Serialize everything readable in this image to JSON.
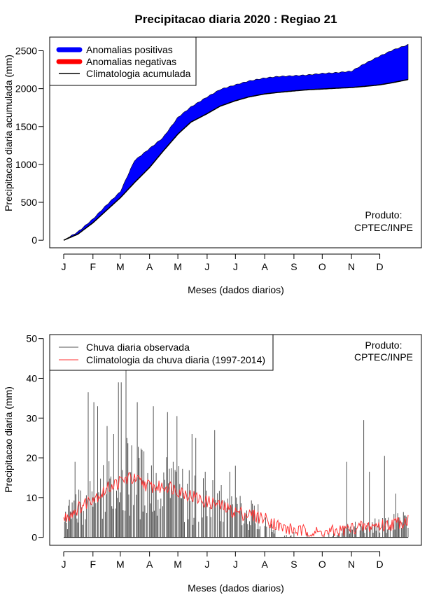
{
  "chart_data": [
    {
      "type": "area",
      "title": "Precipitacao diaria 2020 : Regiao 21",
      "xlabel": "Meses (dados diarios)",
      "ylabel": "Precipitacao diaria acumulada (mm)",
      "x_ticks": [
        "J",
        "F",
        "M",
        "A",
        "M",
        "J",
        "J",
        "A",
        "S",
        "O",
        "N",
        "D"
      ],
      "y_ticks": [
        0,
        500,
        1000,
        1500,
        2000,
        2500
      ],
      "xlim": [
        0,
        366
      ],
      "ylim": [
        -100,
        2680
      ],
      "legend": {
        "position": "top-left",
        "entries": [
          {
            "label": "Anomalias positivas",
            "color": "#0000ff"
          },
          {
            "label": "Anomalias negativas",
            "color": "#ff0000"
          },
          {
            "label": "Climatologia acumulada",
            "color": "#000000"
          }
        ]
      },
      "credit": [
        "Produto:",
        "CPTEC/INPE"
      ],
      "day": [
        0,
        15,
        31,
        45,
        60,
        75,
        91,
        105,
        121,
        135,
        152,
        166,
        182,
        196,
        213,
        227,
        244,
        258,
        274,
        288,
        305,
        319,
        335,
        349,
        365
      ],
      "observed_cumulative": [
        0,
        110,
        280,
        460,
        640,
        1050,
        1210,
        1350,
        1620,
        1760,
        1890,
        1990,
        2050,
        2100,
        2140,
        2160,
        2170,
        2180,
        2200,
        2210,
        2230,
        2330,
        2430,
        2510,
        2580
      ],
      "climatology_cumulative": [
        0,
        80,
        230,
        390,
        560,
        760,
        960,
        1170,
        1400,
        1560,
        1670,
        1770,
        1840,
        1890,
        1930,
        1950,
        1970,
        1985,
        1995,
        2005,
        2015,
        2030,
        2050,
        2080,
        2120
      ]
    },
    {
      "type": "bar",
      "xlabel": "Meses (dados diarios)",
      "ylabel": "Precipitacao diaria (mm)",
      "x_ticks": [
        "J",
        "F",
        "M",
        "A",
        "M",
        "J",
        "J",
        "A",
        "S",
        "O",
        "N",
        "D"
      ],
      "y_ticks": [
        0,
        10,
        20,
        30,
        40,
        50
      ],
      "xlim": [
        0,
        366
      ],
      "ylim": [
        -2,
        51
      ],
      "legend": {
        "position": "top-left",
        "entries": [
          {
            "label": "Chuva diaria observada",
            "color": "#555555"
          },
          {
            "label": "Climatologia da chuva diaria (1997-2014)",
            "color": "#ff3333"
          }
        ]
      },
      "credit": [
        "Produto:",
        "CPTEC/INPE"
      ],
      "observed_peaks": [
        {
          "day": 12,
          "value": 19
        },
        {
          "day": 16,
          "value": 12
        },
        {
          "day": 26,
          "value": 36.5
        },
        {
          "day": 32,
          "value": 34
        },
        {
          "day": 36,
          "value": 33
        },
        {
          "day": 46,
          "value": 28
        },
        {
          "day": 53,
          "value": 26
        },
        {
          "day": 58,
          "value": 39
        },
        {
          "day": 61,
          "value": 39
        },
        {
          "day": 66,
          "value": 45
        },
        {
          "day": 78,
          "value": 34
        },
        {
          "day": 80,
          "value": 20
        },
        {
          "day": 95,
          "value": 33
        },
        {
          "day": 110,
          "value": 31.5
        },
        {
          "day": 120,
          "value": 30.5
        },
        {
          "day": 136,
          "value": 26
        },
        {
          "day": 140,
          "value": 25
        },
        {
          "day": 150,
          "value": 16.5
        },
        {
          "day": 160,
          "value": 27
        },
        {
          "day": 176,
          "value": 16.5
        },
        {
          "day": 182,
          "value": 18
        },
        {
          "day": 214,
          "value": 5
        },
        {
          "day": 300,
          "value": 19
        },
        {
          "day": 318,
          "value": 29.5
        },
        {
          "day": 324,
          "value": 16.5
        },
        {
          "day": 340,
          "value": 20.5
        },
        {
          "day": 352,
          "value": 11
        },
        {
          "day": 362,
          "value": 5.5
        }
      ],
      "climatology_daily": {
        "day": [
          0,
          10,
          20,
          30,
          40,
          50,
          60,
          70,
          80,
          90,
          100,
          110,
          120,
          130,
          140,
          150,
          160,
          170,
          180,
          190,
          200,
          210,
          220,
          230,
          240,
          250,
          260,
          270,
          280,
          290,
          300,
          310,
          320,
          330,
          340,
          350,
          360,
          365
        ],
        "values": [
          4.5,
          6.5,
          8,
          10,
          11,
          13,
          14,
          15,
          14,
          13,
          12.5,
          13,
          12,
          11,
          10,
          9,
          8.5,
          7.5,
          6.5,
          6,
          5.5,
          5,
          4,
          2.5,
          2,
          1.5,
          1.5,
          1,
          1.2,
          1.5,
          2,
          2.5,
          2.5,
          3,
          3,
          3.5,
          4,
          4.5
        ]
      }
    }
  ]
}
